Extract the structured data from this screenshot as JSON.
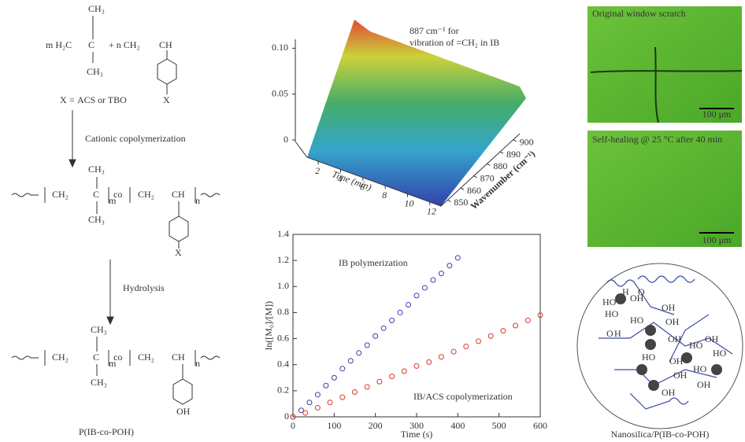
{
  "scheme": {
    "labels": [
      "CH₃",
      "m H₂C",
      "C",
      "+ n CH₂",
      "CH",
      "CH₃",
      "X",
      "X",
      "=",
      "ACS",
      "or TBO",
      "Cationic copolymerization",
      "CH₃",
      "CH₂",
      "C",
      "m",
      "co",
      "CH₂",
      "CH",
      "n",
      "CH₃",
      "X",
      "Hydrolysis",
      "CH₃",
      "CH₂",
      "C",
      "m",
      "co",
      "CH₂",
      "CH",
      "n",
      "CH₃",
      "OH",
      "P(IB-co-POH)"
    ]
  },
  "surface_plot": {
    "annotation": [
      "887 cm⁻¹ for",
      "vibration of =CH₂ in IB"
    ],
    "zticks": [
      0,
      {
        "value": 0.05,
        "label": "0.05"
      },
      {
        "value": 0.1,
        "label": "0.10"
      }
    ],
    "zlim": [
      0,
      0.12
    ],
    "time_ticks": [
      2,
      4,
      6,
      8,
      10,
      12
    ],
    "time_lim": [
      1,
      13
    ],
    "time_label": "Time (min)",
    "wavenumber_ticks": [
      850,
      860,
      870,
      880,
      890,
      900
    ],
    "wavenumber_lim": [
      845,
      905
    ],
    "wavenumber_label": "Wavenumber (cm⁻¹)"
  },
  "chart_data": {
    "type": "scatter",
    "xlabel": "Time (s)",
    "ylabel": "ln([M₀]/[M])",
    "xlim": [
      0,
      600
    ],
    "xticks": [
      0,
      100,
      200,
      300,
      400,
      500,
      600
    ],
    "ylim": [
      0,
      1.4
    ],
    "yticks": [
      0,
      0.2,
      0.4,
      0.6,
      0.8,
      {
        "value": 1,
        "label": "1.0"
      },
      1.2,
      1.4
    ],
    "series": [
      {
        "name": "IB polymerization",
        "color": "#3a3fa8",
        "x": [
          0,
          20,
          40,
          60,
          80,
          100,
          120,
          140,
          160,
          180,
          200,
          220,
          240,
          260,
          280,
          300,
          320,
          340,
          360,
          380,
          400
        ],
        "values": [
          0,
          0.05,
          0.11,
          0.17,
          0.24,
          0.3,
          0.37,
          0.43,
          0.49,
          0.55,
          0.62,
          0.68,
          0.74,
          0.8,
          0.86,
          0.93,
          0.99,
          1.05,
          1.1,
          1.16,
          1.22
        ]
      },
      {
        "name": "IB/ACS copolymerization",
        "color": "#d83a2a",
        "x": [
          0,
          30,
          60,
          90,
          120,
          150,
          180,
          210,
          240,
          270,
          300,
          330,
          360,
          390,
          420,
          450,
          480,
          510,
          540,
          570,
          600
        ],
        "values": [
          0,
          0.03,
          0.07,
          0.11,
          0.15,
          0.19,
          0.23,
          0.27,
          0.31,
          0.35,
          0.39,
          0.42,
          0.46,
          0.5,
          0.54,
          0.58,
          0.62,
          0.66,
          0.7,
          0.74,
          0.78
        ]
      }
    ]
  },
  "micrographs": [
    {
      "caption": "Original window scratch",
      "scale": "100 μm"
    },
    {
      "caption": "Self-healing @ 25 °C after 40 min",
      "scale": "100 μm"
    }
  ],
  "nanosilica": {
    "labels": [
      "HO",
      "OH",
      "O",
      "H",
      "HO",
      "OH",
      "HO",
      "OH",
      "H",
      "O",
      "OH",
      "HO",
      "OH",
      "HO",
      "OH",
      "OH",
      "HO",
      "OH",
      "HO",
      "OH"
    ],
    "caption": "Nanosilica/P(IB-co-POH)"
  }
}
